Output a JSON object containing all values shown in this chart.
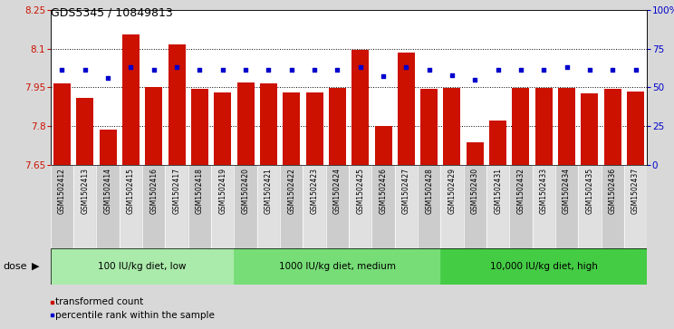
{
  "title": "GDS5345 / 10849813",
  "samples": [
    "GSM1502412",
    "GSM1502413",
    "GSM1502414",
    "GSM1502415",
    "GSM1502416",
    "GSM1502417",
    "GSM1502418",
    "GSM1502419",
    "GSM1502420",
    "GSM1502421",
    "GSM1502422",
    "GSM1502423",
    "GSM1502424",
    "GSM1502425",
    "GSM1502426",
    "GSM1502427",
    "GSM1502428",
    "GSM1502429",
    "GSM1502430",
    "GSM1502431",
    "GSM1502432",
    "GSM1502433",
    "GSM1502434",
    "GSM1502435",
    "GSM1502436",
    "GSM1502437"
  ],
  "bar_values": [
    7.965,
    7.91,
    7.785,
    8.155,
    7.95,
    8.115,
    7.945,
    7.928,
    7.97,
    7.963,
    7.928,
    7.928,
    7.948,
    8.095,
    7.8,
    8.085,
    7.943,
    7.948,
    7.735,
    7.822,
    7.948,
    7.948,
    7.948,
    7.926,
    7.943,
    7.932
  ],
  "percentile_values": [
    61,
    61,
    56,
    63,
    61,
    63,
    61,
    61,
    61,
    61,
    61,
    61,
    61,
    63,
    57,
    63,
    61,
    58,
    55,
    61,
    61,
    61,
    63,
    61,
    61,
    61
  ],
  "groups": [
    {
      "label": "100 IU/kg diet, low",
      "start": 0,
      "end": 8,
      "color": "#aaeaaa"
    },
    {
      "label": "1000 IU/kg diet, medium",
      "start": 8,
      "end": 17,
      "color": "#77dd77"
    },
    {
      "label": "10,000 IU/kg diet, high",
      "start": 17,
      "end": 26,
      "color": "#44cc44"
    }
  ],
  "y_min": 7.65,
  "y_max": 8.25,
  "y_ticks": [
    7.65,
    7.8,
    7.95,
    8.1,
    8.25
  ],
  "y_tick_labels": [
    "7.65",
    "7.8",
    "7.95",
    "8.1",
    "8.25"
  ],
  "right_y_ticks": [
    0,
    25,
    50,
    75,
    100
  ],
  "right_y_tick_labels": [
    "0",
    "25",
    "50",
    "75",
    "100%"
  ],
  "bar_color": "#cc1100",
  "dot_color": "#0000cc",
  "bg_color": "#d8d8d8",
  "plot_bg": "#ffffff",
  "label_bg_odd": "#cccccc",
  "label_bg_even": "#e0e0e0",
  "legend_items": [
    {
      "label": "transformed count",
      "color": "#cc1100"
    },
    {
      "label": "percentile rank within the sample",
      "color": "#0000cc"
    }
  ]
}
